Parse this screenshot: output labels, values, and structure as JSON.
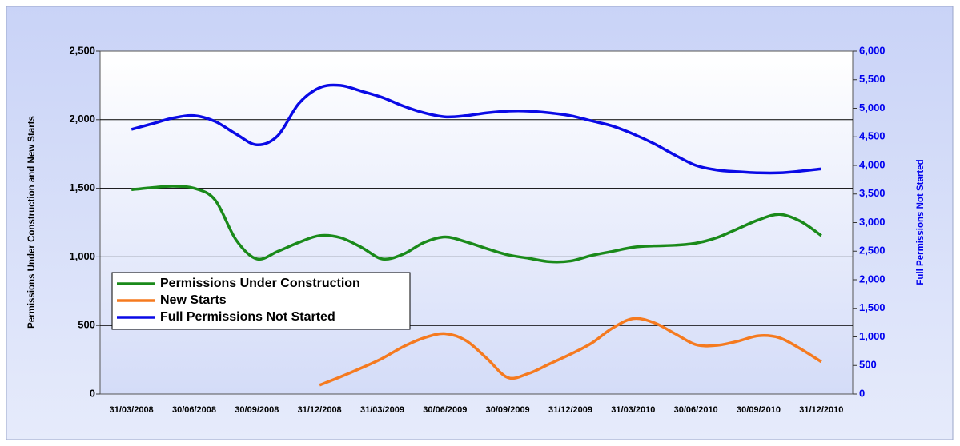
{
  "chart_data": {
    "type": "line",
    "categories": [
      null,
      "31/03/2008",
      null,
      null,
      "30/06/2008",
      null,
      null,
      "30/09/2008",
      null,
      null,
      "31/12/2008",
      null,
      null,
      "31/03/2009",
      null,
      null,
      "30/06/2009",
      null,
      null,
      "30/09/2009",
      null,
      null,
      "31/12/2009",
      null,
      null,
      "31/03/2010",
      null,
      null,
      "30/06/2010",
      null,
      null,
      "30/09/2010",
      null,
      null,
      "31/12/2010",
      null
    ],
    "ylabel": "Permissions Under Construction and New Starts",
    "y2label": "Full Permissions Not Started",
    "ylim": [
      0,
      2500
    ],
    "yticks": [
      0,
      500,
      {
        "value": 1000,
        "label": "1,000"
      },
      {
        "value": 1500,
        "label": "1,500"
      },
      {
        "value": 2000,
        "label": "2,000"
      },
      {
        "value": 2500,
        "label": "2,500"
      }
    ],
    "y2lim": [
      0,
      6000
    ],
    "y2ticks": [
      0,
      500,
      {
        "value": 1000,
        "label": "1,000"
      },
      {
        "value": 1500,
        "label": "1,500"
      },
      {
        "value": 2000,
        "label": "2,000"
      },
      {
        "value": 2500,
        "label": "2,500"
      },
      {
        "value": 3000,
        "label": "3,000"
      },
      {
        "value": 3500,
        "label": "3,500"
      },
      {
        "value": 4000,
        "label": "4,000"
      },
      {
        "value": 4500,
        "label": "4,500"
      },
      {
        "value": 5000,
        "label": "5,000"
      },
      {
        "value": 5500,
        "label": "5,500"
      },
      {
        "value": 6000,
        "label": "6,000"
      }
    ],
    "grid": true,
    "legend": "left",
    "y2color": "#0000ee",
    "series": [
      {
        "name": "Permissions Under Construction",
        "color": "#1a8a1a",
        "values": [
          null,
          1490,
          1505,
          1515,
          1500,
          1415,
          1125,
          985,
          1040,
          1105,
          1155,
          1140,
          1070,
          985,
          1020,
          1105,
          1145,
          1110,
          1060,
          1015,
          990,
          965,
          970,
          1010,
          1040,
          1070,
          1080,
          1085,
          1100,
          1140,
          1205,
          1270,
          1310,
          1260,
          1155,
          null
        ]
      },
      {
        "name": "New Starts",
        "color": "#f57a1f",
        "values": [
          null,
          null,
          null,
          null,
          null,
          null,
          null,
          null,
          null,
          null,
          65,
          125,
          190,
          260,
          345,
          410,
          440,
          390,
          260,
          120,
          150,
          220,
          290,
          370,
          480,
          550,
          520,
          440,
          360,
          355,
          385,
          425,
          410,
          330,
          235,
          null
        ]
      },
      {
        "name": "Full Permissions Not Started",
        "color": "#0a0ae6",
        "axis": "y2",
        "values": [
          null,
          4630,
          4730,
          4830,
          4870,
          4770,
          4550,
          4360,
          4520,
          5080,
          5360,
          5400,
          5300,
          5190,
          5040,
          4920,
          4850,
          4870,
          4920,
          4950,
          4950,
          4920,
          4870,
          4780,
          4690,
          4550,
          4380,
          4180,
          4000,
          3920,
          3890,
          3870,
          3870,
          3900,
          3940,
          null
        ]
      }
    ]
  }
}
